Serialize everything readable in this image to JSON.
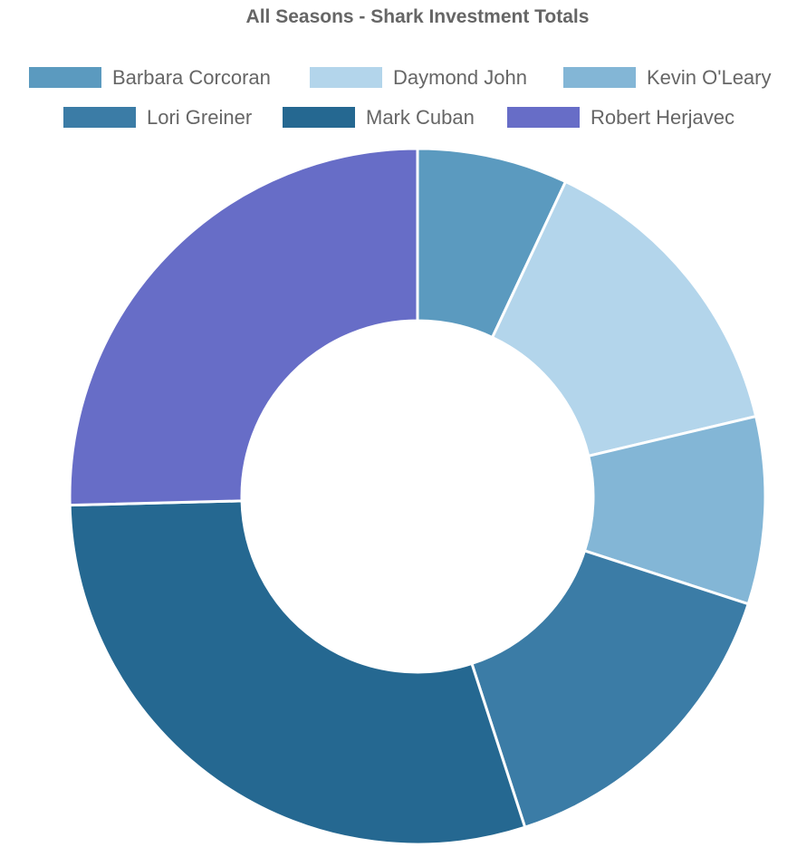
{
  "chart_data": {
    "type": "pie",
    "variant": "doughnut",
    "title": "All Seasons - Shark Investment Totals",
    "legend_position": "top",
    "categories": [
      "Barbara Corcoran",
      "Daymond John",
      "Kevin O'Leary",
      "Lori Greiner",
      "Mark Cuban",
      "Robert Herjavec"
    ],
    "values": [
      7.0,
      14.3,
      8.7,
      15.0,
      29.6,
      25.4
    ],
    "colors": [
      "#5b9abf",
      "#b3d5eb",
      "#83b6d6",
      "#3b7ca6",
      "#256891",
      "#676dc7"
    ]
  }
}
